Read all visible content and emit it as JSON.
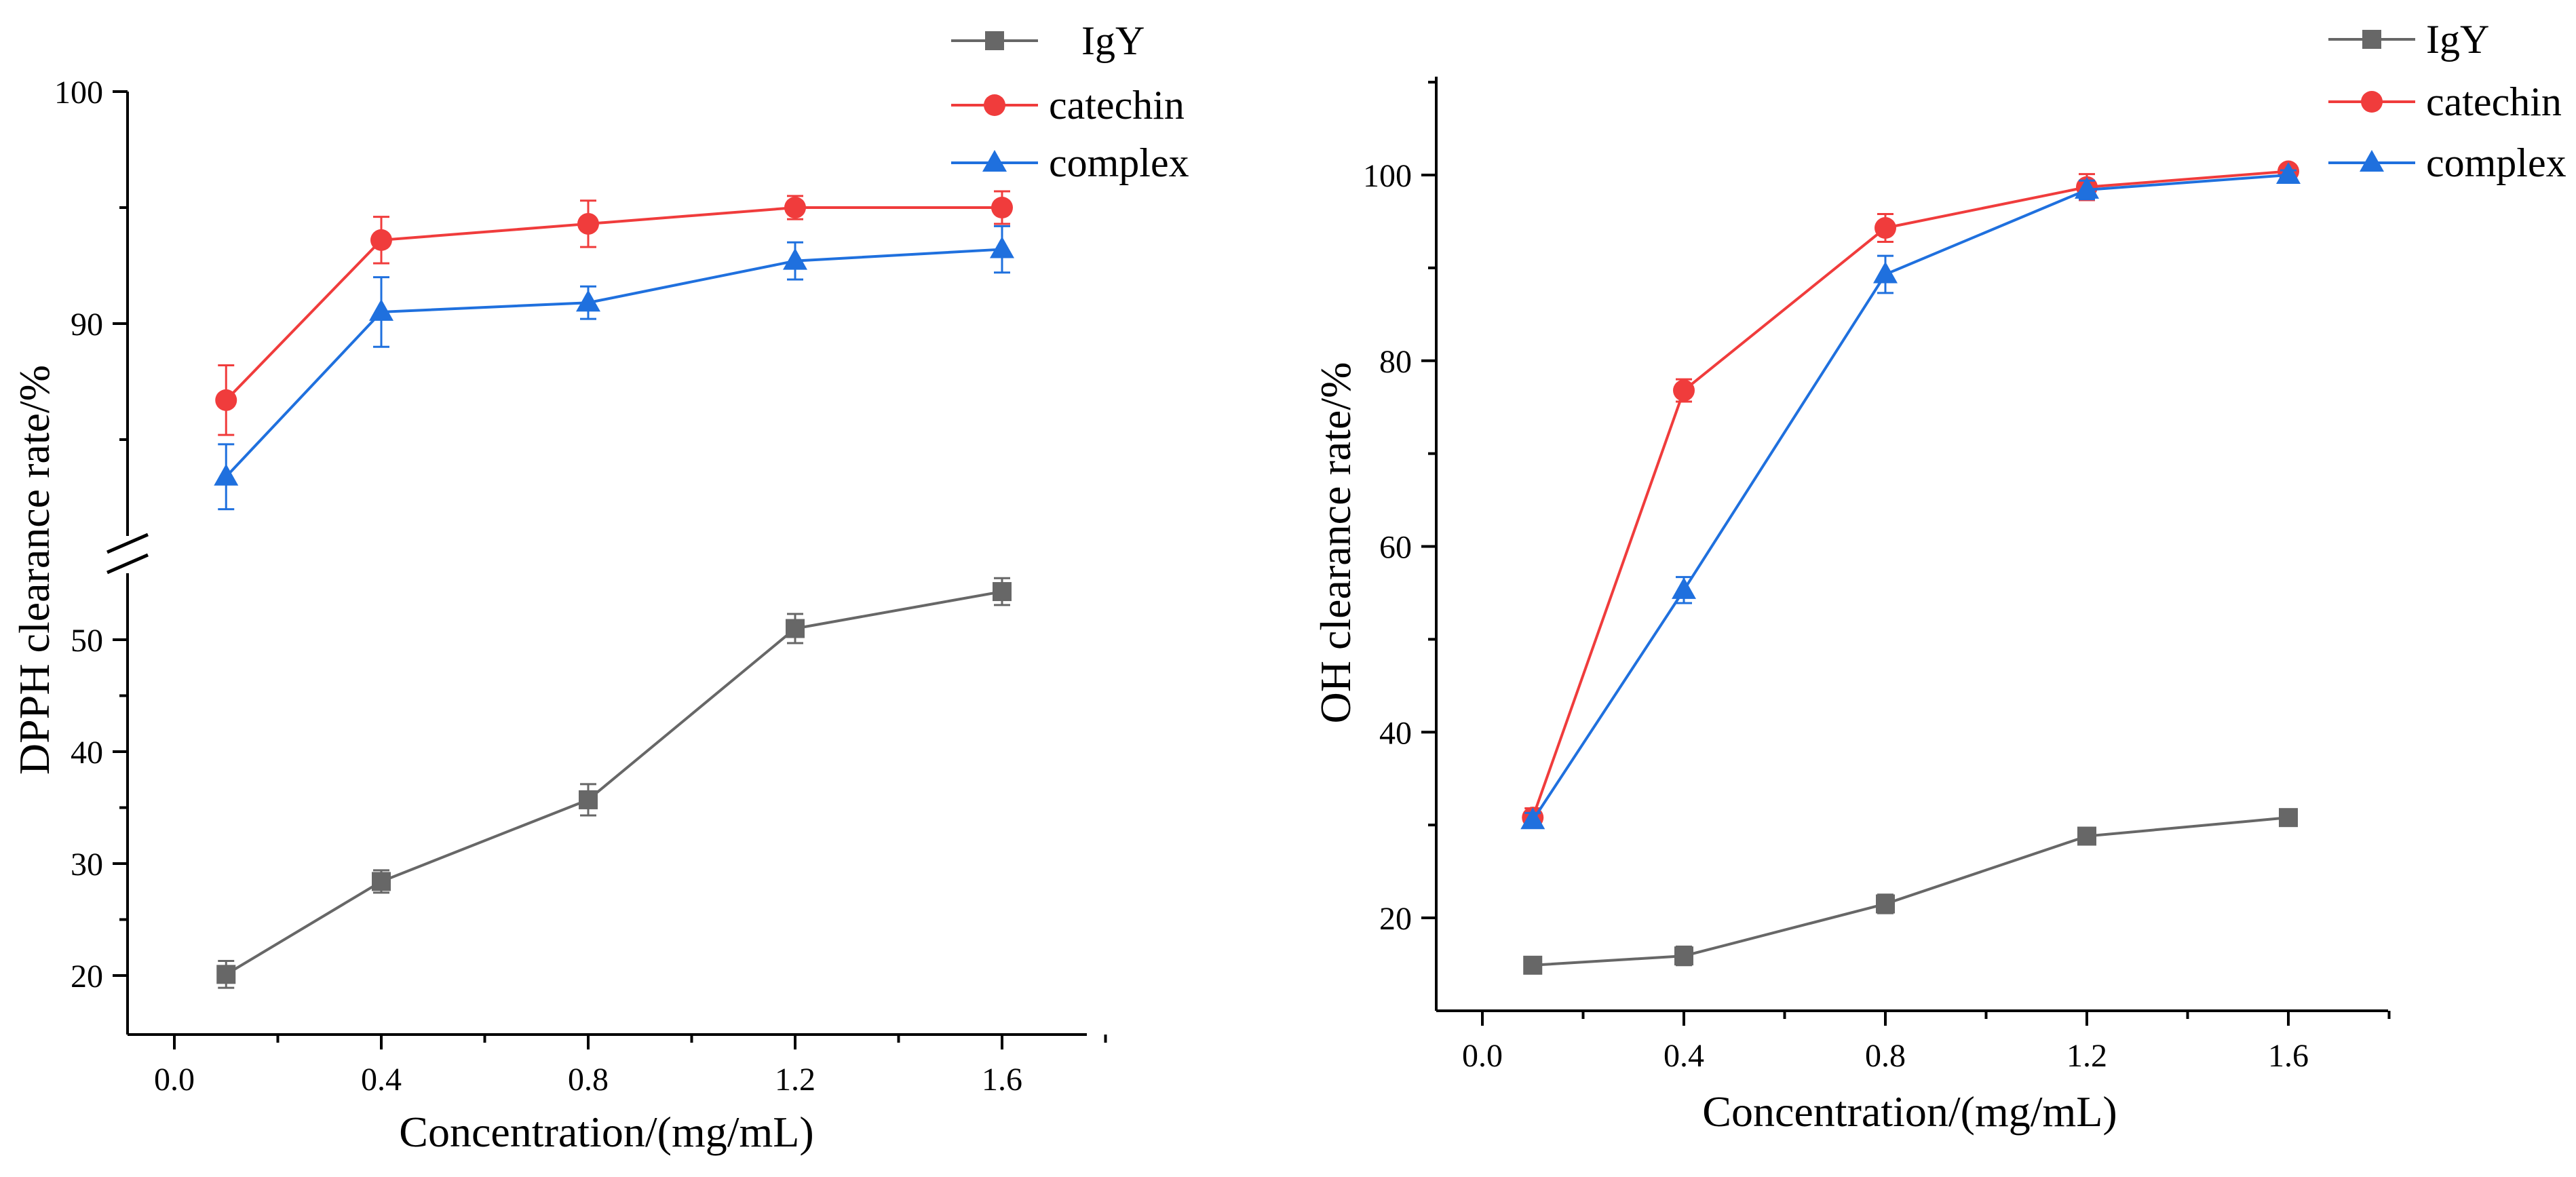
{
  "chart_data": [
    {
      "type": "line",
      "title": "",
      "xlabel": "Concentration/(mg/mL)",
      "ylabel": "DPPH clearance rate/%",
      "x_ticks": [
        0.0,
        0.4,
        0.8,
        1.2,
        1.6
      ],
      "x_tick_labels": [
        "0.0",
        "0.4",
        "0.8",
        "1.2",
        "1.6"
      ],
      "xlim": [
        -0.05,
        1.8
      ],
      "y_axis_break": true,
      "y_lower_ylim": [
        15,
        56
      ],
      "y_lower_ticks": [
        20,
        30,
        40,
        50
      ],
      "y_upper_ylim": [
        79,
        100
      ],
      "y_upper_ticks": [
        90,
        100
      ],
      "legend_position": "top-right",
      "x": [
        0.1,
        0.4,
        0.8,
        1.2,
        1.6
      ],
      "series": [
        {
          "name": "IgY",
          "color": "#676767",
          "marker": "square",
          "values": [
            20.1,
            28.4,
            35.7,
            51.0,
            54.3
          ],
          "errors": [
            1.2,
            1.0,
            1.4,
            1.3,
            1.2
          ]
        },
        {
          "name": "catechin",
          "color": "#f03c3c",
          "marker": "circle",
          "values": [
            86.7,
            93.6,
            94.3,
            95.0,
            95.0
          ],
          "errors": [
            1.5,
            1.0,
            1.0,
            0.5,
            0.7
          ]
        },
        {
          "name": "complex",
          "color": "#1f70de",
          "marker": "triangle",
          "values": [
            83.4,
            90.5,
            90.9,
            92.7,
            93.2
          ],
          "errors": [
            1.4,
            1.5,
            0.7,
            0.8,
            1.0
          ]
        }
      ]
    },
    {
      "type": "line",
      "title": "",
      "xlabel": "Concentration/(mg/mL)",
      "ylabel": "OH clearance rate/%",
      "x_ticks": [
        0.0,
        0.4,
        0.8,
        1.2,
        1.6
      ],
      "x_tick_labels": [
        "0.0",
        "0.4",
        "0.8",
        "1.2",
        "1.6"
      ],
      "xlim": [
        -0.1,
        1.8
      ],
      "y_axis_break": false,
      "ylim": [
        10,
        110
      ],
      "y_ticks": [
        20,
        40,
        60,
        80,
        100
      ],
      "legend_position": "top-right",
      "x": [
        0.1,
        0.4,
        0.8,
        1.2,
        1.6
      ],
      "series": [
        {
          "name": "IgY",
          "color": "#676767",
          "marker": "square",
          "values": [
            14.9,
            15.9,
            21.5,
            28.8,
            30.8
          ],
          "errors": [
            0.8,
            1.0,
            1.0,
            0.8,
            0.8
          ]
        },
        {
          "name": "catechin",
          "color": "#f03c3c",
          "marker": "circle",
          "values": [
            30.8,
            76.8,
            94.3,
            98.7,
            100.4
          ],
          "errors": [
            1.0,
            1.2,
            1.5,
            1.4,
            0.6
          ]
        },
        {
          "name": "complex",
          "color": "#1f70de",
          "marker": "triangle",
          "values": [
            30.5,
            55.3,
            89.3,
            98.4,
            100.0
          ],
          "errors": [
            0.8,
            1.4,
            2.0,
            1.0,
            0.5
          ]
        }
      ]
    }
  ]
}
